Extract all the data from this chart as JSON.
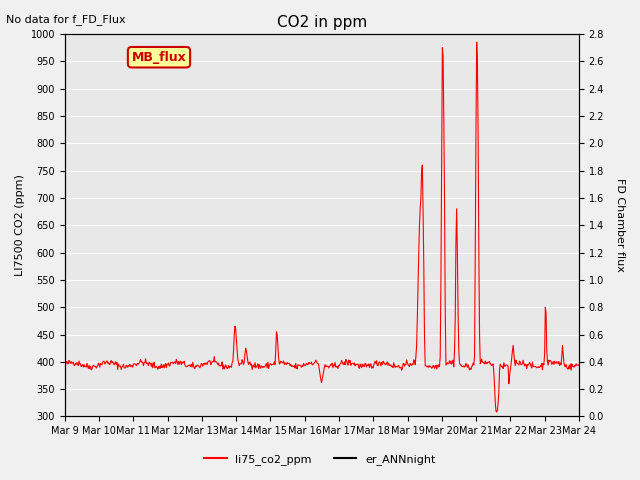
{
  "title": "CO2 in ppm",
  "top_left_text": "No data for f_FD_Flux",
  "ylabel_left": "LI7500 CO2 (ppm)",
  "ylabel_right": "FD Chamber flux",
  "ylim_left": [
    300,
    1000
  ],
  "ylim_right": [
    0.0,
    2.8
  ],
  "yticks_left": [
    300,
    350,
    400,
    450,
    500,
    550,
    600,
    650,
    700,
    750,
    800,
    850,
    900,
    950,
    1000
  ],
  "yticks_right": [
    0.0,
    0.2,
    0.4,
    0.6,
    0.8,
    1.0,
    1.2,
    1.4,
    1.6,
    1.8,
    2.0,
    2.2,
    2.4,
    2.6,
    2.8
  ],
  "xtick_labels": [
    "Mar 9",
    "Mar 10",
    "Mar 11",
    "Mar 12",
    "Mar 13",
    "Mar 14",
    "Mar 15",
    "Mar 16",
    "Mar 17",
    "Mar 18",
    "Mar 19",
    "Mar 20",
    "Mar 21",
    "Mar 22",
    "Mar 23",
    "Mar 24"
  ],
  "color_red": "#ff0000",
  "color_black": "#000000",
  "legend_labels": [
    "li75_co2_ppm",
    "er_ANNnight"
  ],
  "bg_color": "#e8e8e8",
  "plot_bg_color": "#f0f0f0",
  "mb_flux_box_color": "#ffff99",
  "mb_flux_text_color": "#cc0000",
  "mb_flux_border_color": "#cc0000"
}
